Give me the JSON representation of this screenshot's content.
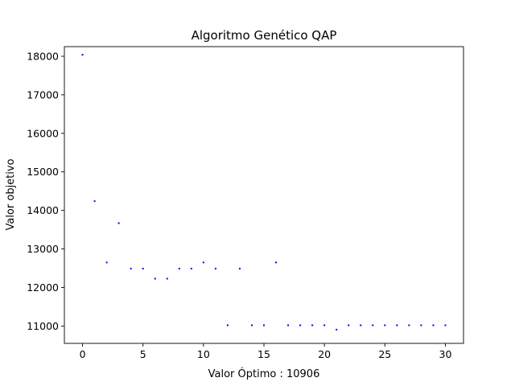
{
  "chart_data": {
    "type": "scatter",
    "title": "Algoritmo Genético QAP",
    "xlabel": "Valor Óptimo : 10906",
    "ylabel": "Valor objetivo",
    "xlim": [
      -1.5,
      31.5
    ],
    "ylim": [
      10550,
      18250
    ],
    "x_ticks": [
      0,
      5,
      10,
      15,
      20,
      25,
      30
    ],
    "y_ticks": [
      11000,
      12000,
      13000,
      14000,
      15000,
      16000,
      17000,
      18000
    ],
    "grid": false,
    "point_color": "#0000ff",
    "x": [
      0,
      1,
      2,
      3,
      4,
      5,
      6,
      7,
      8,
      9,
      10,
      11,
      12,
      13,
      14,
      15,
      16,
      17,
      18,
      19,
      20,
      21,
      22,
      23,
      24,
      25,
      26,
      27,
      28,
      29,
      30
    ],
    "y": [
      18040,
      14240,
      12650,
      13670,
      12490,
      12490,
      12230,
      12230,
      12490,
      12490,
      12650,
      12490,
      11020,
      12490,
      11020,
      11020,
      12650,
      11020,
      11020,
      11020,
      11020,
      10906,
      11020,
      11020,
      11020,
      11020,
      11020,
      11020,
      11020,
      11020,
      11020
    ]
  }
}
